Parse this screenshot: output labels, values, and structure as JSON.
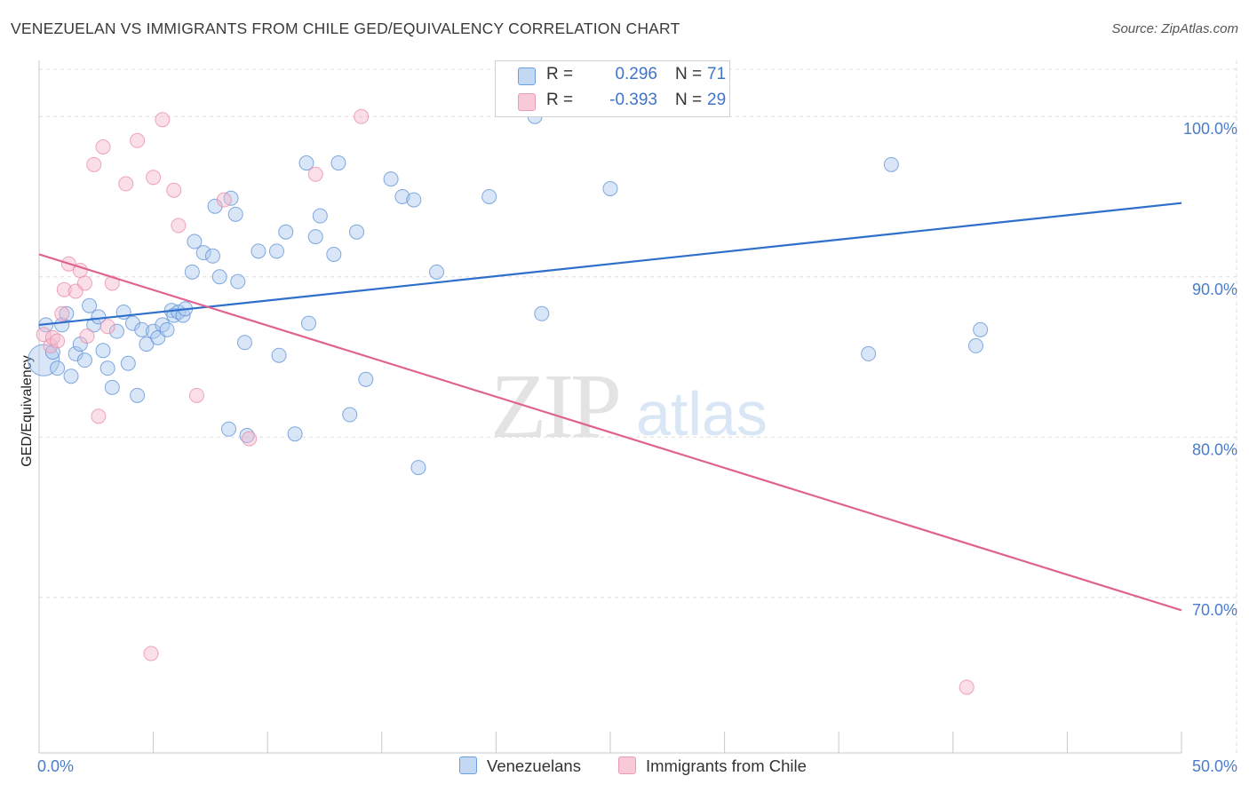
{
  "title": "VENEZUELAN VS IMMIGRANTS FROM CHILE GED/EQUIVALENCY CORRELATION CHART",
  "source": "Source: ZipAtlas.com",
  "colors": {
    "blue_fill": "#a9c8ee",
    "blue_stroke": "#5b8fd6",
    "blue_line": "#2f6fcc",
    "pink_fill": "#f5b8cb",
    "pink_stroke": "#e98aa7",
    "pink_line": "#e0638f",
    "axis_text": "#4a7cc9",
    "grid": "#dddddd"
  },
  "legend": {
    "r_key": "R =",
    "n_key": "N =",
    "rows": [
      {
        "r": "0.296",
        "n": "71"
      },
      {
        "r": "-0.393",
        "n": "29"
      }
    ]
  },
  "chart_data": {
    "type": "scatter",
    "title": "VENEZUELAN VS IMMIGRANTS FROM CHILE GED/EQUIVALENCY CORRELATION CHART",
    "xlabel": "",
    "ylabel": "GED/Equivalency",
    "xlim": [
      0,
      50
    ],
    "ylim": [
      60.3,
      103.5
    ],
    "x_ticks": [
      0,
      5,
      10,
      15,
      20,
      25,
      30,
      35,
      40,
      45,
      50
    ],
    "x_tick_labels": [
      {
        "value": 0,
        "label": "0.0%"
      },
      {
        "value": 50,
        "label": "50.0%"
      }
    ],
    "y_ticks": [
      {
        "value": 100,
        "label": "100.0%"
      },
      {
        "value": 90,
        "label": "90.0%"
      },
      {
        "value": 80,
        "label": "80.0%"
      },
      {
        "value": 70,
        "label": "70.0%"
      }
    ],
    "grid": true,
    "watermark": {
      "part1": "ZIP",
      "part2": "atlas"
    },
    "series": [
      {
        "name": "Venezuelans",
        "color": "blue",
        "r": 0.296,
        "n": 71,
        "trend": {
          "x": [
            0,
            50
          ],
          "y": [
            87.0,
            94.6
          ]
        },
        "points": [
          [
            0.2,
            84.8,
            2.2
          ],
          [
            0.3,
            87.0,
            1
          ],
          [
            0.6,
            85.3,
            1
          ],
          [
            0.8,
            84.3,
            1
          ],
          [
            1.0,
            87.0,
            1
          ],
          [
            1.2,
            87.7,
            1
          ],
          [
            1.4,
            83.8,
            1
          ],
          [
            1.6,
            85.2,
            1
          ],
          [
            1.8,
            85.8,
            1
          ],
          [
            2.0,
            84.8,
            1
          ],
          [
            2.2,
            88.2,
            1
          ],
          [
            2.4,
            87.0,
            1
          ],
          [
            2.6,
            87.5,
            1
          ],
          [
            2.8,
            85.4,
            1
          ],
          [
            3.0,
            84.3,
            1
          ],
          [
            3.2,
            83.1,
            1
          ],
          [
            3.4,
            86.6,
            1
          ],
          [
            3.7,
            87.8,
            1
          ],
          [
            3.9,
            84.6,
            1
          ],
          [
            4.1,
            87.1,
            1
          ],
          [
            4.3,
            82.6,
            1
          ],
          [
            4.5,
            86.7,
            1
          ],
          [
            4.7,
            85.8,
            1
          ],
          [
            5.0,
            86.6,
            1
          ],
          [
            5.2,
            86.2,
            1
          ],
          [
            5.4,
            87.0,
            1
          ],
          [
            5.6,
            86.7,
            1
          ],
          [
            5.8,
            87.9,
            1
          ],
          [
            5.9,
            87.6,
            1
          ],
          [
            6.1,
            87.8,
            1
          ],
          [
            6.3,
            87.6,
            1
          ],
          [
            6.4,
            88.0,
            1
          ],
          [
            6.7,
            90.3,
            1
          ],
          [
            6.8,
            92.2,
            1
          ],
          [
            7.2,
            91.5,
            1
          ],
          [
            7.6,
            91.3,
            1
          ],
          [
            7.7,
            94.4,
            1
          ],
          [
            7.9,
            90.0,
            1
          ],
          [
            8.3,
            80.5,
            1
          ],
          [
            8.4,
            94.9,
            1
          ],
          [
            8.6,
            93.9,
            1
          ],
          [
            8.7,
            89.7,
            1
          ],
          [
            9.0,
            85.9,
            1
          ],
          [
            9.1,
            80.1,
            1
          ],
          [
            9.6,
            91.6,
            1
          ],
          [
            10.4,
            91.6,
            1
          ],
          [
            10.5,
            85.1,
            1
          ],
          [
            10.8,
            92.8,
            1
          ],
          [
            11.2,
            80.2,
            1
          ],
          [
            11.7,
            97.1,
            1
          ],
          [
            11.8,
            87.1,
            1
          ],
          [
            12.1,
            92.5,
            1
          ],
          [
            12.3,
            93.8,
            1
          ],
          [
            12.9,
            91.4,
            1
          ],
          [
            13.1,
            97.1,
            1
          ],
          [
            13.6,
            81.4,
            1
          ],
          [
            13.9,
            92.8,
            1
          ],
          [
            14.3,
            83.6,
            1
          ],
          [
            15.4,
            96.1,
            1
          ],
          [
            15.9,
            95.0,
            1
          ],
          [
            16.4,
            94.8,
            1
          ],
          [
            16.6,
            78.1,
            1
          ],
          [
            17.4,
            90.3,
            1
          ],
          [
            19.7,
            95.0,
            1
          ],
          [
            21.7,
            100.0,
            1
          ],
          [
            22.0,
            87.7,
            1
          ],
          [
            25.0,
            95.5,
            1
          ],
          [
            36.3,
            85.2,
            1
          ],
          [
            37.3,
            97.0,
            1
          ],
          [
            41.0,
            85.7,
            1
          ],
          [
            41.2,
            86.7,
            1
          ]
        ]
      },
      {
        "name": "Immigrants from Chile",
        "color": "pink",
        "r": -0.393,
        "n": 29,
        "trend": {
          "x": [
            0,
            50
          ],
          "y": [
            91.4,
            69.2
          ]
        },
        "points": [
          [
            0.2,
            86.4,
            1
          ],
          [
            0.5,
            85.7,
            1
          ],
          [
            0.6,
            86.2,
            1
          ],
          [
            0.8,
            86.0,
            1
          ],
          [
            1.0,
            87.7,
            1
          ],
          [
            1.1,
            89.2,
            1
          ],
          [
            1.3,
            90.8,
            1
          ],
          [
            1.6,
            89.1,
            1
          ],
          [
            1.8,
            90.4,
            1
          ],
          [
            2.0,
            89.6,
            1
          ],
          [
            2.1,
            86.3,
            1
          ],
          [
            2.4,
            97.0,
            1
          ],
          [
            2.6,
            81.3,
            1
          ],
          [
            2.8,
            98.1,
            1
          ],
          [
            3.0,
            86.9,
            1
          ],
          [
            3.2,
            89.6,
            1
          ],
          [
            3.8,
            95.8,
            1
          ],
          [
            4.3,
            98.5,
            1
          ],
          [
            4.9,
            66.5,
            1
          ],
          [
            5.0,
            96.2,
            1
          ],
          [
            5.4,
            99.8,
            1
          ],
          [
            5.9,
            95.4,
            1
          ],
          [
            6.1,
            93.2,
            1
          ],
          [
            6.9,
            82.6,
            1
          ],
          [
            8.1,
            94.8,
            1
          ],
          [
            9.2,
            79.9,
            1
          ],
          [
            12.1,
            96.4,
            1
          ],
          [
            14.1,
            100.0,
            1
          ],
          [
            40.6,
            64.4,
            1
          ]
        ]
      }
    ]
  }
}
